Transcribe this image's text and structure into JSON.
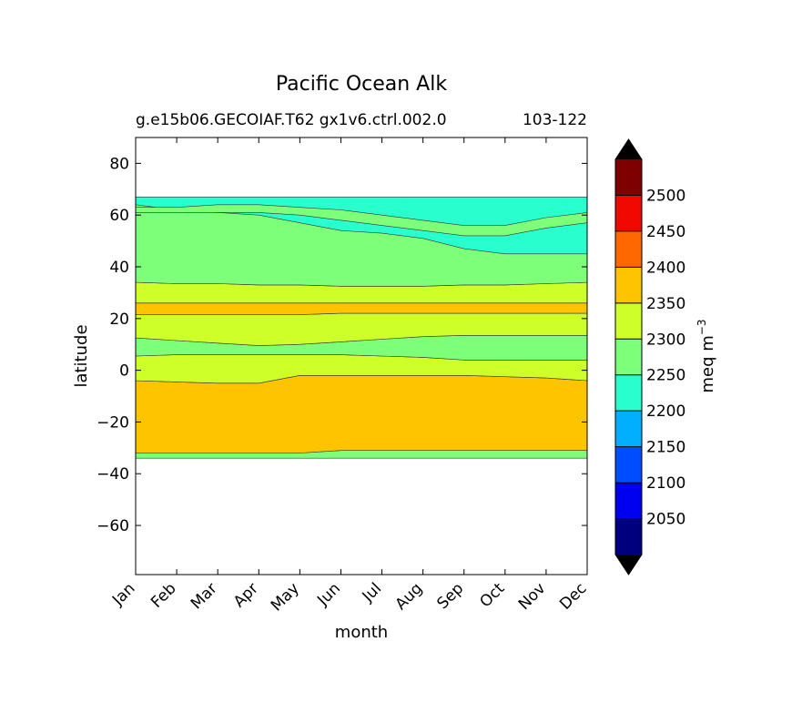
{
  "chart_data": {
    "type": "contourf",
    "title": "Pacific Ocean Alk",
    "subtitle_left": "g.e15b06.GECOIAF.T62 gx1v6.ctrl.002.0",
    "subtitle_right": "103-122",
    "xlabel": "month",
    "ylabel": "latitude",
    "x_ticks": [
      "Jan",
      "Feb",
      "Mar",
      "Apr",
      "May",
      "Jun",
      "Jul",
      "Aug",
      "Sep",
      "Oct",
      "Nov",
      "Dec"
    ],
    "y_ticks": [
      80,
      60,
      40,
      20,
      0,
      -20,
      -40,
      -60
    ],
    "ylim": [
      -79,
      90
    ],
    "data_lat_range": [
      -34,
      67
    ],
    "colorbar": {
      "label": "meq m",
      "label_superscript": "−3",
      "extend": "both",
      "levels": [
        2000,
        2050,
        2100,
        2150,
        2200,
        2250,
        2300,
        2350,
        2400,
        2450,
        2500,
        2550
      ],
      "tick_labels": [
        "2050",
        "2100",
        "2150",
        "2200",
        "2250",
        "2300",
        "2350",
        "2400",
        "2450",
        "2500"
      ],
      "colors": [
        "#00007f",
        "#0000f1",
        "#004cff",
        "#00b0ff",
        "#29ffce",
        "#7dff7a",
        "#ceff29",
        "#ffc400",
        "#ff6800",
        "#f10800",
        "#7f0000"
      ],
      "under_color": "#000000",
      "over_color": "#000000"
    },
    "contour_bands": [
      {
        "range": [
          2250,
          2300
        ],
        "lat_bottom": [
          -34,
          -34,
          -34,
          -34,
          -34,
          -34,
          -34,
          -34,
          -34,
          -34,
          -34,
          -34
        ],
        "lat_top": [
          -32,
          -32,
          -32,
          -32,
          -32,
          -31,
          -31,
          -31,
          -31,
          -31,
          -31,
          -31
        ]
      },
      {
        "range": [
          2350,
          2400
        ],
        "lat_bottom": [
          -32,
          -32,
          -32,
          -32,
          -32,
          -31,
          -31,
          -31,
          -31,
          -31,
          -31,
          -31
        ],
        "lat_top": [
          -4,
          -4.5,
          -5,
          -5,
          -2,
          -2,
          -2,
          -2,
          -2,
          -2.5,
          -3,
          -4
        ]
      },
      {
        "range": [
          2300,
          2350
        ],
        "lat_bottom": [
          -4,
          -4.5,
          -5,
          -5,
          -2,
          -2,
          -2,
          -2,
          -2,
          -2.5,
          -3,
          -4
        ],
        "lat_top": [
          5.5,
          6,
          6,
          6,
          6,
          6,
          5.5,
          5,
          4,
          4,
          4,
          4
        ]
      },
      {
        "range": [
          2250,
          2300
        ],
        "lat_bottom": [
          5.5,
          6,
          6,
          6,
          6,
          6,
          5.5,
          5,
          4,
          4,
          4,
          4
        ],
        "lat_top": [
          12.5,
          11.5,
          10.5,
          9.5,
          10,
          11,
          12,
          13,
          13.5,
          13.5,
          13.5,
          13.5
        ]
      },
      {
        "range": [
          2300,
          2350
        ],
        "lat_bottom": [
          12.5,
          11.5,
          10.5,
          9.5,
          10,
          11,
          12,
          13,
          13.5,
          13.5,
          13.5,
          13.5
        ],
        "lat_top": [
          21.5,
          21.5,
          21.5,
          21.5,
          21.5,
          22,
          22,
          22,
          22,
          22,
          22,
          22
        ]
      },
      {
        "range": [
          2350,
          2400
        ],
        "lat_bottom": [
          21.5,
          21.5,
          21.5,
          21.5,
          21.5,
          22,
          22,
          22,
          22,
          22,
          22,
          22
        ],
        "lat_top": [
          26,
          26,
          26,
          26,
          26,
          26,
          26,
          26,
          26,
          26,
          26,
          26
        ]
      },
      {
        "range": [
          2300,
          2350
        ],
        "lat_bottom": [
          26,
          26,
          26,
          26,
          26,
          26,
          26,
          26,
          26,
          26,
          26,
          26
        ],
        "lat_top": [
          34,
          33.5,
          33.5,
          33,
          33,
          32.5,
          32.5,
          32.5,
          33,
          33,
          33.5,
          34
        ]
      },
      {
        "range": [
          2250,
          2300
        ],
        "lat_bottom": [
          34,
          33.5,
          33.5,
          33,
          33,
          32.5,
          32.5,
          32.5,
          33,
          33,
          33.5,
          34
        ],
        "lat_top": [
          67,
          67,
          67,
          67,
          67,
          67,
          67,
          67,
          67,
          67,
          67,
          67
        ]
      },
      {
        "range": [
          2200,
          2250
        ],
        "lat_bottom": [
          64,
          62,
          61,
          60,
          57,
          54,
          53,
          51,
          47,
          45,
          45,
          45
        ],
        "lat_top": [
          67,
          67,
          67,
          67,
          67,
          67,
          67,
          67,
          67,
          67,
          67,
          67
        ]
      },
      {
        "range": [
          2250,
          2300
        ],
        "lat_bottom": [
          61,
          61,
          61,
          61,
          60,
          58,
          56,
          54,
          52,
          52,
          55,
          57
        ],
        "lat_top": [
          63,
          63,
          64,
          64,
          63,
          62,
          60,
          58,
          56,
          56,
          59,
          61
        ]
      }
    ]
  }
}
